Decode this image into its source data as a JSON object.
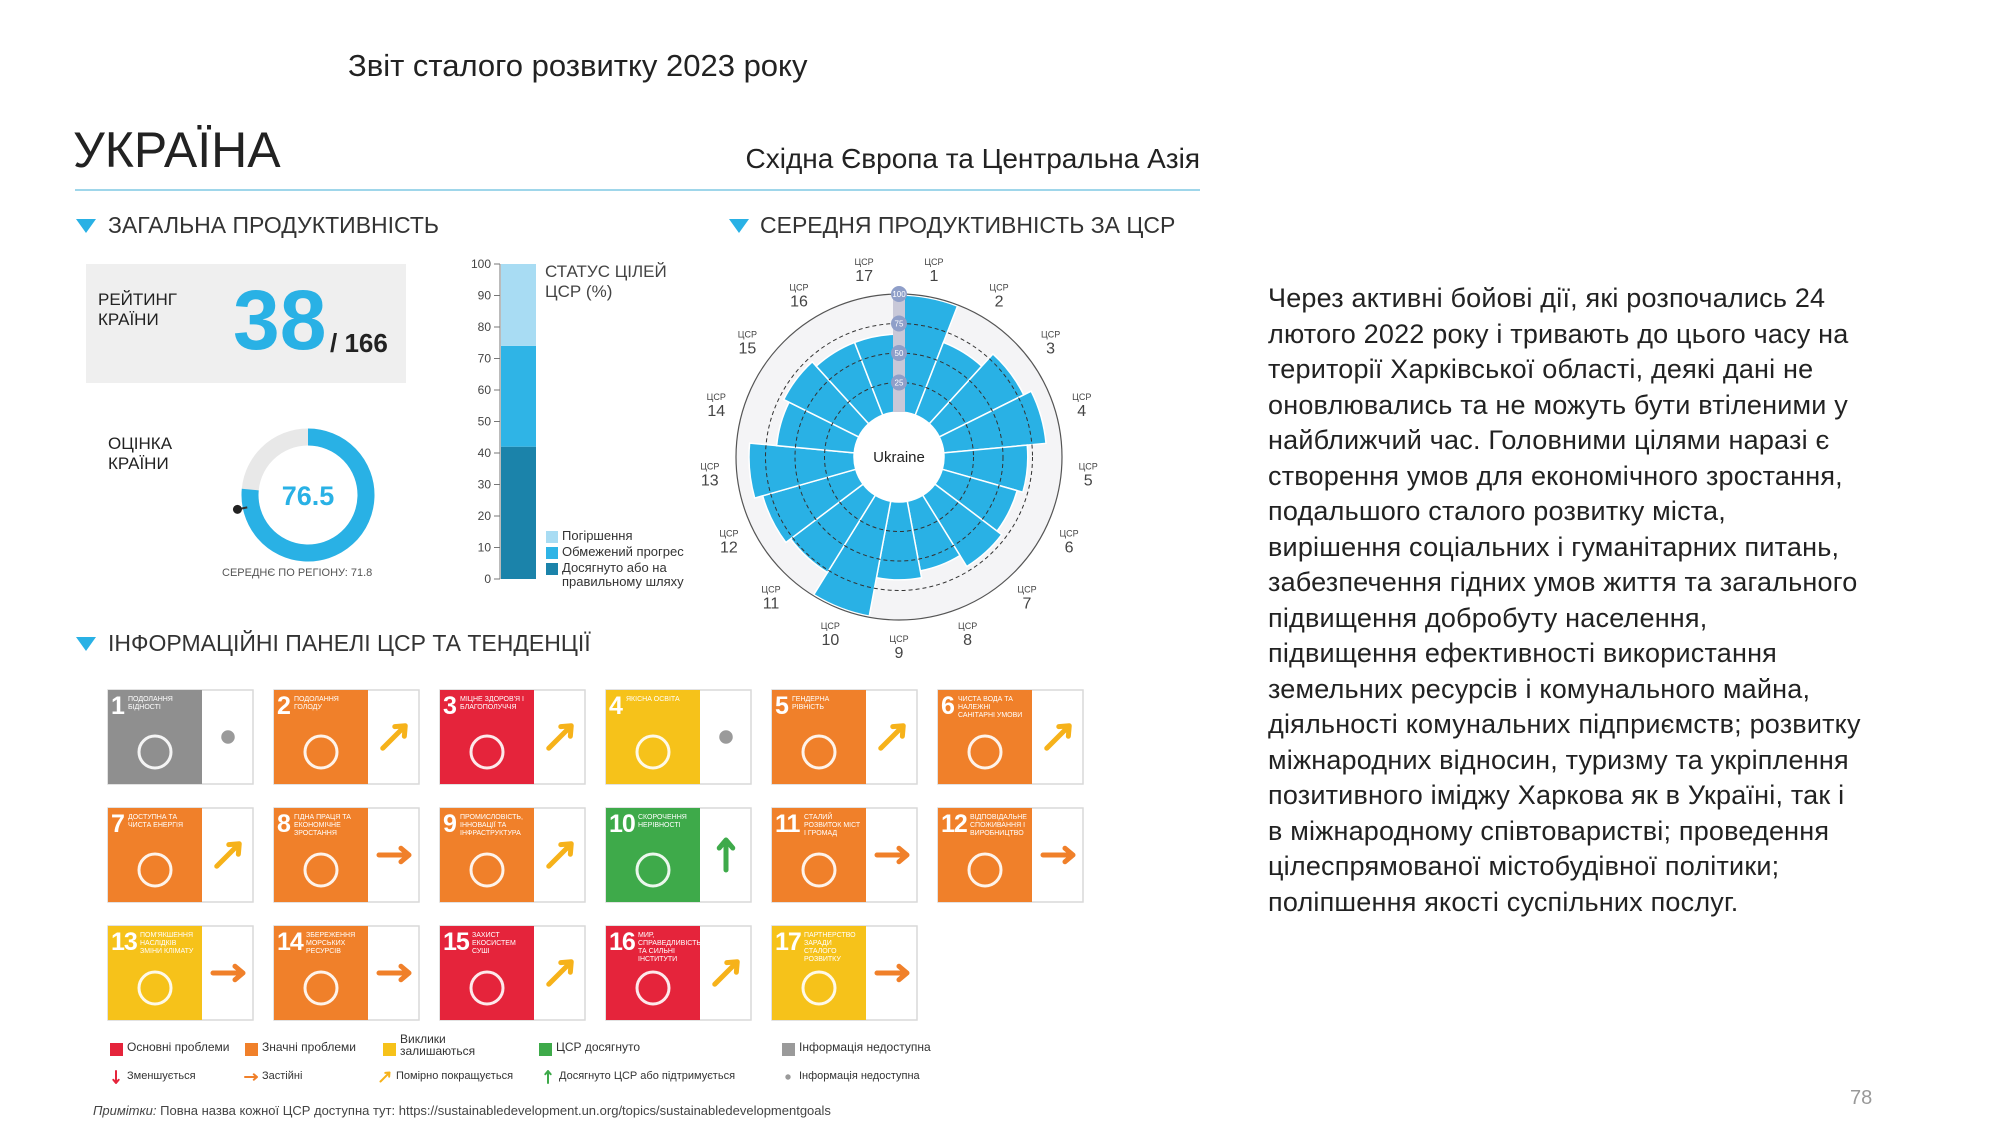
{
  "header": {
    "report_title": "Звіт сталого розвитку 2023 року",
    "country": "УКРАЇНА",
    "region": "Східна Європа та Центральна Азія"
  },
  "overall": {
    "heading": "ЗАГАЛЬНА ПРОДУКТИВНІСТЬ",
    "rank_label": "РЕЙТИНГ КРАЇНИ",
    "rank": 38,
    "rank_total": "/ 166",
    "score_label": "ОЦІНКА КРАЇНИ",
    "score": 76.5,
    "score_range": [
      0,
      100
    ],
    "region_average_label": "СЕРЕДНЄ ПО РЕГІОНУ:",
    "region_average": 71.8
  },
  "status_chart": {
    "type": "bar",
    "title": "СТАТУС ЦІЛЕЙ ЦСР (%)",
    "ylim": [
      0,
      100
    ],
    "yticks": [
      0,
      10,
      20,
      30,
      40,
      50,
      60,
      70,
      80,
      90,
      100
    ],
    "series": [
      {
        "name": "Погіршення",
        "color": "#a8dcf3",
        "values": [
          26
        ]
      },
      {
        "name": "Обмежений прогрес",
        "color": "#2fb4e6",
        "values": [
          32
        ]
      },
      {
        "name": "Досягнуто або на правильному шляху",
        "color": "#1b83aa",
        "values": [
          42
        ]
      }
    ]
  },
  "goal_chart": {
    "type": "radial",
    "heading": "СЕРЕДНЯ ПРОДУКТИВНІСТЬ ЗА ЦСР",
    "center_label": "Ukraine",
    "goal_prefix": "ЦСР",
    "goals": [
      "1",
      "2",
      "3",
      "4",
      "5",
      "6",
      "7",
      "8",
      "9",
      "10",
      "11",
      "12",
      "13",
      "14",
      "15",
      "16",
      "17"
    ],
    "values": [
      99,
      66,
      80,
      87,
      71,
      66,
      71,
      60,
      66,
      99,
      77,
      82,
      89,
      66,
      71,
      66,
      66
    ],
    "color": "#29b1e5",
    "rlim": [
      0,
      100
    ],
    "rticks": [
      25,
      50,
      75,
      100
    ]
  },
  "dashboard": {
    "heading": "ІНФОРМАЦІЙНІ ПАНЕЛІ ЦСР ТА ТЕНДЕНЦІЇ",
    "tiles": [
      {
        "number": "1",
        "name": "ПОДОЛАННЯ БІДНОСТІ",
        "color": "#8f8f8f",
        "trend": "na"
      },
      {
        "number": "2",
        "name": "ПОДОЛАННЯ ГОЛОДУ",
        "color": "#f0802a",
        "trend": "moderate"
      },
      {
        "number": "3",
        "name": "МІЦНЕ ЗДОРОВ'Я І БЛАГОПОЛУЧЧЯ",
        "color": "#e5243b",
        "trend": "moderate"
      },
      {
        "number": "4",
        "name": "ЯКІСНА ОСВІТА",
        "color": "#f6c21a",
        "trend": "na"
      },
      {
        "number": "5",
        "name": "ГЕНДЕРНА РІВНІСТЬ",
        "color": "#f0802a",
        "trend": "moderate"
      },
      {
        "number": "6",
        "name": "ЧИСТА ВОДА ТА НАЛЕЖНІ САНІТАРНІ УМОВИ",
        "color": "#f0802a",
        "trend": "moderate"
      },
      {
        "number": "7",
        "name": "ДОСТУПНА ТА ЧИСТА ЕНЕРГІЯ",
        "color": "#f0802a",
        "trend": "moderate"
      },
      {
        "number": "8",
        "name": "ГІДНА ПРАЦЯ ТА ЕКОНОМІЧНЕ ЗРОСТАННЯ",
        "color": "#f0802a",
        "trend": "stagnant"
      },
      {
        "number": "9",
        "name": "ПРОМИСЛОВІСТЬ, ІННОВАЦІЇ ТА ІНФРАСТРУКТУРА",
        "color": "#f0802a",
        "trend": "moderate"
      },
      {
        "number": "10",
        "name": "СКОРОЧЕННЯ НЕРІВНОСТІ",
        "color": "#3eaa4a",
        "trend": "up"
      },
      {
        "number": "11",
        "name": "СТАЛИЙ РОЗВИТОК МІСТ І ГРОМАД",
        "color": "#f0802a",
        "trend": "stagnant"
      },
      {
        "number": "12",
        "name": "ВІДПОВІДАЛЬНЕ СПОЖИВАННЯ І ВИРОБНИЦТВО",
        "color": "#f0802a",
        "trend": "stagnant"
      },
      {
        "number": "13",
        "name": "ПОМ'ЯКШЕННЯ НАСЛІДКІВ ЗМІНИ КЛІМАТУ",
        "color": "#f6c21a",
        "trend": "stagnant"
      },
      {
        "number": "14",
        "name": "ЗБЕРЕЖЕННЯ МОРСЬКИХ РЕСУРСІВ",
        "color": "#f0802a",
        "trend": "stagnant"
      },
      {
        "number": "15",
        "name": "ЗАХИСТ ЕКОСИСТЕМ СУШІ",
        "color": "#e5243b",
        "trend": "moderate"
      },
      {
        "number": "16",
        "name": "МИР, СПРАВЕДЛИВІСТЬ ТА СИЛЬНІ ІНСТИТУТИ",
        "color": "#e5243b",
        "trend": "moderate"
      },
      {
        "number": "17",
        "name": "ПАРТНЕРСТВО ЗАРАДИ СТАЛОГО РОЗВИТКУ",
        "color": "#f6c21a",
        "trend": "stagnant"
      }
    ],
    "status_legend": [
      {
        "label": "Основні проблеми",
        "color": "#e5243b"
      },
      {
        "label": "Значні проблеми",
        "color": "#f0802a"
      },
      {
        "label": "Виклики залишаються",
        "color": "#f6c21a"
      },
      {
        "label": "ЦСР досягнуто",
        "color": "#3eaa4a"
      },
      {
        "label": "Інформація недоступна",
        "color": "#9a9a9a"
      }
    ],
    "trend_legend": [
      {
        "label": "Зменшується",
        "trend": "down"
      },
      {
        "label": "Застійні",
        "trend": "stagnant"
      },
      {
        "label": "Помірно покращується",
        "trend": "moderate"
      },
      {
        "label": "Досягнуто ЦСР або підтримується",
        "trend": "up"
      },
      {
        "label": "Інформація недоступна",
        "trend": "na"
      }
    ],
    "note_label": "Примітки:",
    "note": "Повна назва кожної ЦСР доступна тут: https://sustainabledevelopment.un.org/topics/sustainabledevelopmentgoals"
  },
  "text": {
    "lines": [
      "Через активні бойові дії, які розпочались 24",
      "лютого 2022 року і тривають до цього часу на",
      "території Харківської області, деякі дані не",
      "оновлювались та не можуть бути втіленими у",
      "найближчий час. Головними цілями наразі є",
      "створення умов для економічного зростання,",
      "подальшого сталого розвитку міста,",
      "вирішення соціальних і гуманітарних питань,",
      "забезпечення гідних умов життя та загального",
      "підвищення добробуту населення,",
      "підвищення ефективності використання",
      "земельних ресурсів і комунального майна,",
      "діяльності комунальних підприємств; розвитку",
      "міжнародних відносин, туризму та укріплення",
      "позитивного іміджу Харкова як в Україні, так і",
      "в міжнародному співтоваристві; проведення",
      "цілеспрямованої містобудівної політики;",
      "поліпшення якості суспільних послуг."
    ]
  },
  "page_number": "78"
}
